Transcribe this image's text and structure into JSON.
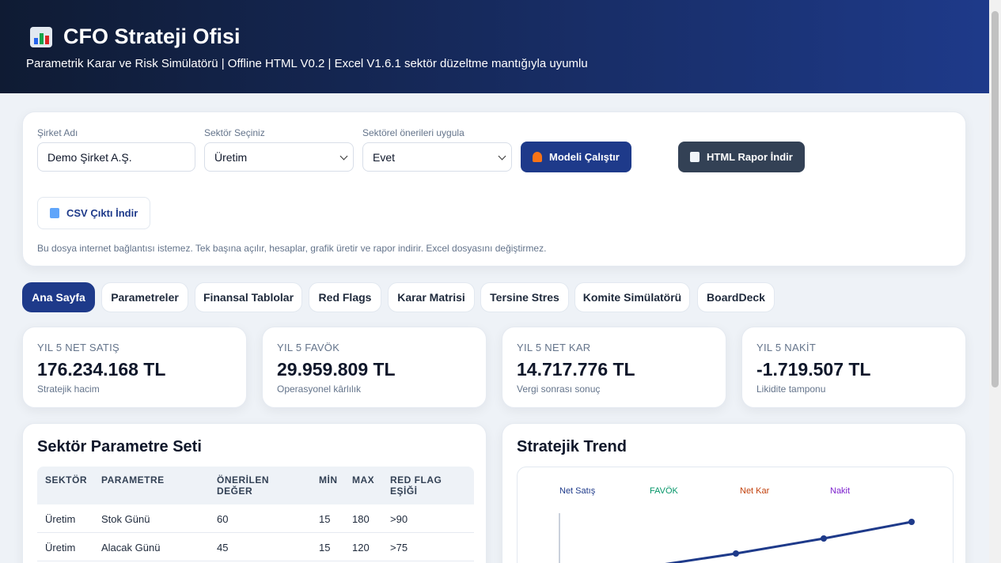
{
  "header": {
    "title": "CFO Strateji Ofisi",
    "subtitle": "Parametrik Karar ve Risk Simülatörü | Offline HTML V0.2 | Excel V1.6.1 sektör düzeltme mantığıyla uyumlu"
  },
  "form": {
    "fields": [
      {
        "label": "Şirket Adı",
        "value": "Demo Şirket A.Ş."
      },
      {
        "label": "Sektör Seçiniz",
        "value": "Üretim"
      },
      {
        "label": "Sektörel önerileri uygula",
        "value": "Evet"
      }
    ],
    "buttons": [
      "Modeli Çalıştır",
      "HTML Rapor İndir",
      "CSV Çıktı İndir"
    ],
    "note": "Bu dosya internet bağlantısı istemez. Tek başına açılır, hesaplar, grafik üretir ve rapor indirir. Excel dosyasını değiştirmez."
  },
  "tabs": [
    "Ana Sayfa",
    "Parametreler",
    "Finansal Tablolar",
    "Red Flags",
    "Karar Matrisi",
    "Tersine Stres",
    "Komite Simülatörü",
    "BoardDeck"
  ],
  "kpis": [
    {
      "label": "YIL 5 NET SATIŞ",
      "value": "176.234.168 TL",
      "caption": "Stratejik hacim"
    },
    {
      "label": "YIL 5 FAVÖK",
      "value": "29.959.809 TL",
      "caption": "Operasyonel kârlılık"
    },
    {
      "label": "YIL 5 NET KAR",
      "value": "14.717.776 TL",
      "caption": "Vergi sonrası sonuç"
    },
    {
      "label": "YIL 5 NAKİT",
      "value": "-1.719.507 TL",
      "caption": "Likidite tamponu"
    }
  ],
  "sector_table": {
    "title": "Sektör Parametre Seti",
    "columns": [
      "SEKTÖR",
      "PARAMETRE",
      "ÖNERİLEN DEĞER",
      "MİN",
      "MAX",
      "RED FLAG EŞİĞİ"
    ],
    "rows": [
      [
        "Üretim",
        "Stok Günü",
        "60",
        "15",
        "180",
        ">90"
      ],
      [
        "Üretim",
        "Alacak Günü",
        "45",
        "15",
        "120",
        ">75"
      ]
    ]
  },
  "trend": {
    "title": "Stratejik Trend",
    "legend": [
      {
        "name": "Net Satış",
        "color": "#1e3a8a"
      },
      {
        "name": "FAVÖK",
        "color": "#059669"
      },
      {
        "name": "Net Kar",
        "color": "#c2410c"
      },
      {
        "name": "Nakit",
        "color": "#7e22ce"
      }
    ]
  }
}
